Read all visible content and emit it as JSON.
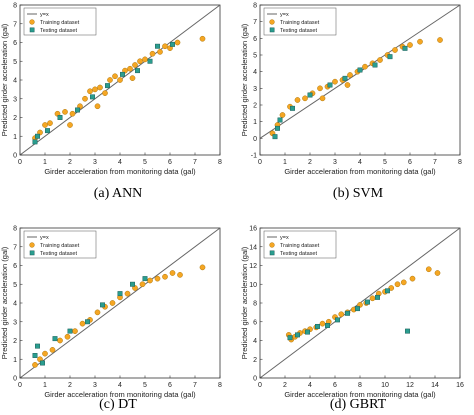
{
  "chart_data": [
    {
      "type": "scatter",
      "caption": "(a) ANN",
      "xlabel": "Girder acceleration from monitoring data (gal)",
      "ylabel": "Predicted girder acceleration (gal)",
      "xlim": [
        0,
        8
      ],
      "ylim": [
        0,
        8
      ],
      "xticks": [
        "0",
        "1",
        "2",
        "3",
        "4",
        "5",
        "6",
        "7",
        "8"
      ],
      "yticks": [
        "0",
        "1",
        "2",
        "3",
        "4",
        "5",
        "6",
        "7",
        "8"
      ],
      "grid": false,
      "legend_position": "top-left",
      "reference_line_label": "y=x",
      "series": [
        {
          "name": "Training dataset",
          "points": [
            [
              0.6,
              0.9
            ],
            [
              0.8,
              1.2
            ],
            [
              1.0,
              1.6
            ],
            [
              1.2,
              1.7
            ],
            [
              1.5,
              2.2
            ],
            [
              1.8,
              2.3
            ],
            [
              2.1,
              2.2
            ],
            [
              2.4,
              2.6
            ],
            [
              2.6,
              3.0
            ],
            [
              2.8,
              3.4
            ],
            [
              3.0,
              3.5
            ],
            [
              3.2,
              3.6
            ],
            [
              3.4,
              3.3
            ],
            [
              3.6,
              4.0
            ],
            [
              3.8,
              4.2
            ],
            [
              4.0,
              4.0
            ],
            [
              4.2,
              4.5
            ],
            [
              4.4,
              4.6
            ],
            [
              4.6,
              4.8
            ],
            [
              4.8,
              5.0
            ],
            [
              5.0,
              5.1
            ],
            [
              5.3,
              5.4
            ],
            [
              5.6,
              5.5
            ],
            [
              5.8,
              5.8
            ],
            [
              6.0,
              5.7
            ],
            [
              6.3,
              6.0
            ],
            [
              7.3,
              6.2
            ],
            [
              2.0,
              1.6
            ],
            [
              3.1,
              2.6
            ],
            [
              4.5,
              4.1
            ]
          ]
        },
        {
          "name": "Testing dataset",
          "points": [
            [
              0.6,
              0.7
            ],
            [
              0.7,
              1.0
            ],
            [
              1.1,
              1.3
            ],
            [
              1.6,
              2.0
            ],
            [
              2.3,
              2.4
            ],
            [
              2.9,
              3.1
            ],
            [
              3.5,
              3.7
            ],
            [
              4.1,
              4.3
            ],
            [
              4.7,
              4.5
            ],
            [
              5.2,
              5.0
            ],
            [
              5.5,
              5.8
            ],
            [
              6.1,
              5.9
            ]
          ]
        }
      ]
    },
    {
      "type": "scatter",
      "caption": "(b) SVM",
      "xlabel": "Girder acceleration from monitoring data (gal)",
      "ylabel": "Predicted girder acceleration (gal)",
      "xlim": [
        0,
        8
      ],
      "ylim": [
        -1,
        8
      ],
      "xticks": [
        "0",
        "1",
        "2",
        "3",
        "4",
        "5",
        "6",
        "7",
        "8"
      ],
      "yticks": [
        "-1",
        "0",
        "1",
        "2",
        "3",
        "4",
        "5",
        "6",
        "7",
        "8"
      ],
      "grid": false,
      "legend_position": "top-left",
      "reference_line_label": "y=x",
      "series": [
        {
          "name": "Training dataset",
          "points": [
            [
              0.5,
              0.3
            ],
            [
              0.7,
              0.8
            ],
            [
              0.9,
              1.4
            ],
            [
              1.2,
              1.9
            ],
            [
              1.5,
              2.3
            ],
            [
              1.8,
              2.4
            ],
            [
              2.1,
              2.7
            ],
            [
              2.4,
              3.0
            ],
            [
              2.7,
              3.1
            ],
            [
              3.0,
              3.4
            ],
            [
              3.3,
              3.5
            ],
            [
              3.6,
              3.8
            ],
            [
              3.9,
              4.0
            ],
            [
              4.2,
              4.3
            ],
            [
              4.5,
              4.5
            ],
            [
              4.8,
              4.7
            ],
            [
              5.1,
              5.0
            ],
            [
              5.4,
              5.3
            ],
            [
              5.7,
              5.5
            ],
            [
              6.0,
              5.6
            ],
            [
              6.4,
              5.8
            ],
            [
              7.2,
              5.9
            ],
            [
              2.5,
              2.4
            ],
            [
              3.5,
              3.2
            ]
          ]
        },
        {
          "name": "Testing dataset",
          "points": [
            [
              0.6,
              0.1
            ],
            [
              0.7,
              0.6
            ],
            [
              0.8,
              1.1
            ],
            [
              1.3,
              1.8
            ],
            [
              2.0,
              2.6
            ],
            [
              2.8,
              3.2
            ],
            [
              3.4,
              3.6
            ],
            [
              4.0,
              4.1
            ],
            [
              4.6,
              4.4
            ],
            [
              5.2,
              4.9
            ],
            [
              5.8,
              5.4
            ]
          ]
        }
      ]
    },
    {
      "type": "scatter",
      "caption": "(c) DT",
      "xlabel": "Girder acceleration from monitoring data (gal)",
      "ylabel": "Predicted girder acceleration (gal)",
      "xlim": [
        0,
        8
      ],
      "ylim": [
        0,
        8
      ],
      "xticks": [
        "0",
        "1",
        "2",
        "3",
        "4",
        "5",
        "6",
        "7",
        "8"
      ],
      "yticks": [
        "0",
        "1",
        "2",
        "3",
        "4",
        "5",
        "6",
        "7",
        "8"
      ],
      "grid": false,
      "legend_position": "top-left",
      "reference_line_label": "y=x",
      "series": [
        {
          "name": "Training dataset",
          "points": [
            [
              0.6,
              0.7
            ],
            [
              0.8,
              1.0
            ],
            [
              1.0,
              1.3
            ],
            [
              1.3,
              1.5
            ],
            [
              1.6,
              2.0
            ],
            [
              1.9,
              2.2
            ],
            [
              2.2,
              2.5
            ],
            [
              2.5,
              2.9
            ],
            [
              2.8,
              3.1
            ],
            [
              3.1,
              3.5
            ],
            [
              3.4,
              3.8
            ],
            [
              3.7,
              4.0
            ],
            [
              4.0,
              4.3
            ],
            [
              4.3,
              4.5
            ],
            [
              4.6,
              4.8
            ],
            [
              4.9,
              5.0
            ],
            [
              5.2,
              5.2
            ],
            [
              5.5,
              5.3
            ],
            [
              5.8,
              5.4
            ],
            [
              6.1,
              5.6
            ],
            [
              6.4,
              5.5
            ],
            [
              7.3,
              5.9
            ]
          ]
        },
        {
          "name": "Testing dataset",
          "points": [
            [
              0.6,
              1.2
            ],
            [
              0.7,
              1.7
            ],
            [
              0.9,
              0.8
            ],
            [
              1.4,
              2.1
            ],
            [
              2.0,
              2.5
            ],
            [
              2.7,
              3.0
            ],
            [
              3.3,
              3.9
            ],
            [
              4.0,
              4.5
            ],
            [
              4.5,
              5.0
            ],
            [
              5.0,
              5.3
            ]
          ]
        }
      ]
    },
    {
      "type": "scatter",
      "caption": "(d) GBRT",
      "xlabel": "Girder acceleration from monitoring data (gal)",
      "ylabel": "Predicted girder acceleration (gal)",
      "xlim": [
        0,
        16
      ],
      "ylim": [
        0,
        16
      ],
      "xticks": [
        "0",
        "2",
        "4",
        "6",
        "8",
        "10",
        "12",
        "14",
        "16"
      ],
      "yticks": [
        "0",
        "2",
        "4",
        "6",
        "8",
        "10",
        "12",
        "14",
        "16"
      ],
      "grid": false,
      "legend_position": "top-left",
      "reference_line_label": "y=x",
      "series": [
        {
          "name": "Training dataset",
          "points": [
            [
              2.3,
              4.6
            ],
            [
              2.8,
              4.4
            ],
            [
              3.2,
              4.8
            ],
            [
              3.6,
              5.0
            ],
            [
              4.0,
              5.2
            ],
            [
              4.5,
              5.4
            ],
            [
              5.0,
              5.8
            ],
            [
              5.5,
              6.0
            ],
            [
              6.0,
              6.5
            ],
            [
              6.5,
              6.8
            ],
            [
              7.0,
              7.0
            ],
            [
              7.5,
              7.3
            ],
            [
              8.0,
              7.8
            ],
            [
              8.5,
              8.0
            ],
            [
              9.0,
              8.5
            ],
            [
              9.5,
              9.0
            ],
            [
              10.0,
              9.2
            ],
            [
              10.5,
              9.6
            ],
            [
              11.0,
              10.0
            ],
            [
              11.5,
              10.2
            ],
            [
              12.2,
              10.6
            ],
            [
              13.5,
              11.6
            ],
            [
              14.2,
              11.2
            ],
            [
              2.5,
              4.1
            ]
          ]
        },
        {
          "name": "Testing dataset",
          "points": [
            [
              2.4,
              4.3
            ],
            [
              3.0,
              4.6
            ],
            [
              3.8,
              4.9
            ],
            [
              4.6,
              5.5
            ],
            [
              5.4,
              5.6
            ],
            [
              6.2,
              6.2
            ],
            [
              7.0,
              6.9
            ],
            [
              7.8,
              7.4
            ],
            [
              8.6,
              8.1
            ],
            [
              9.4,
              8.6
            ],
            [
              10.2,
              9.3
            ],
            [
              11.8,
              5.0
            ]
          ]
        }
      ]
    }
  ],
  "colors": {
    "training_fill": "#f5a623",
    "training_edge": "#b07a10",
    "testing_fill": "#2a9d8f",
    "testing_edge": "#1b5e58",
    "reference_line": "#666666"
  }
}
